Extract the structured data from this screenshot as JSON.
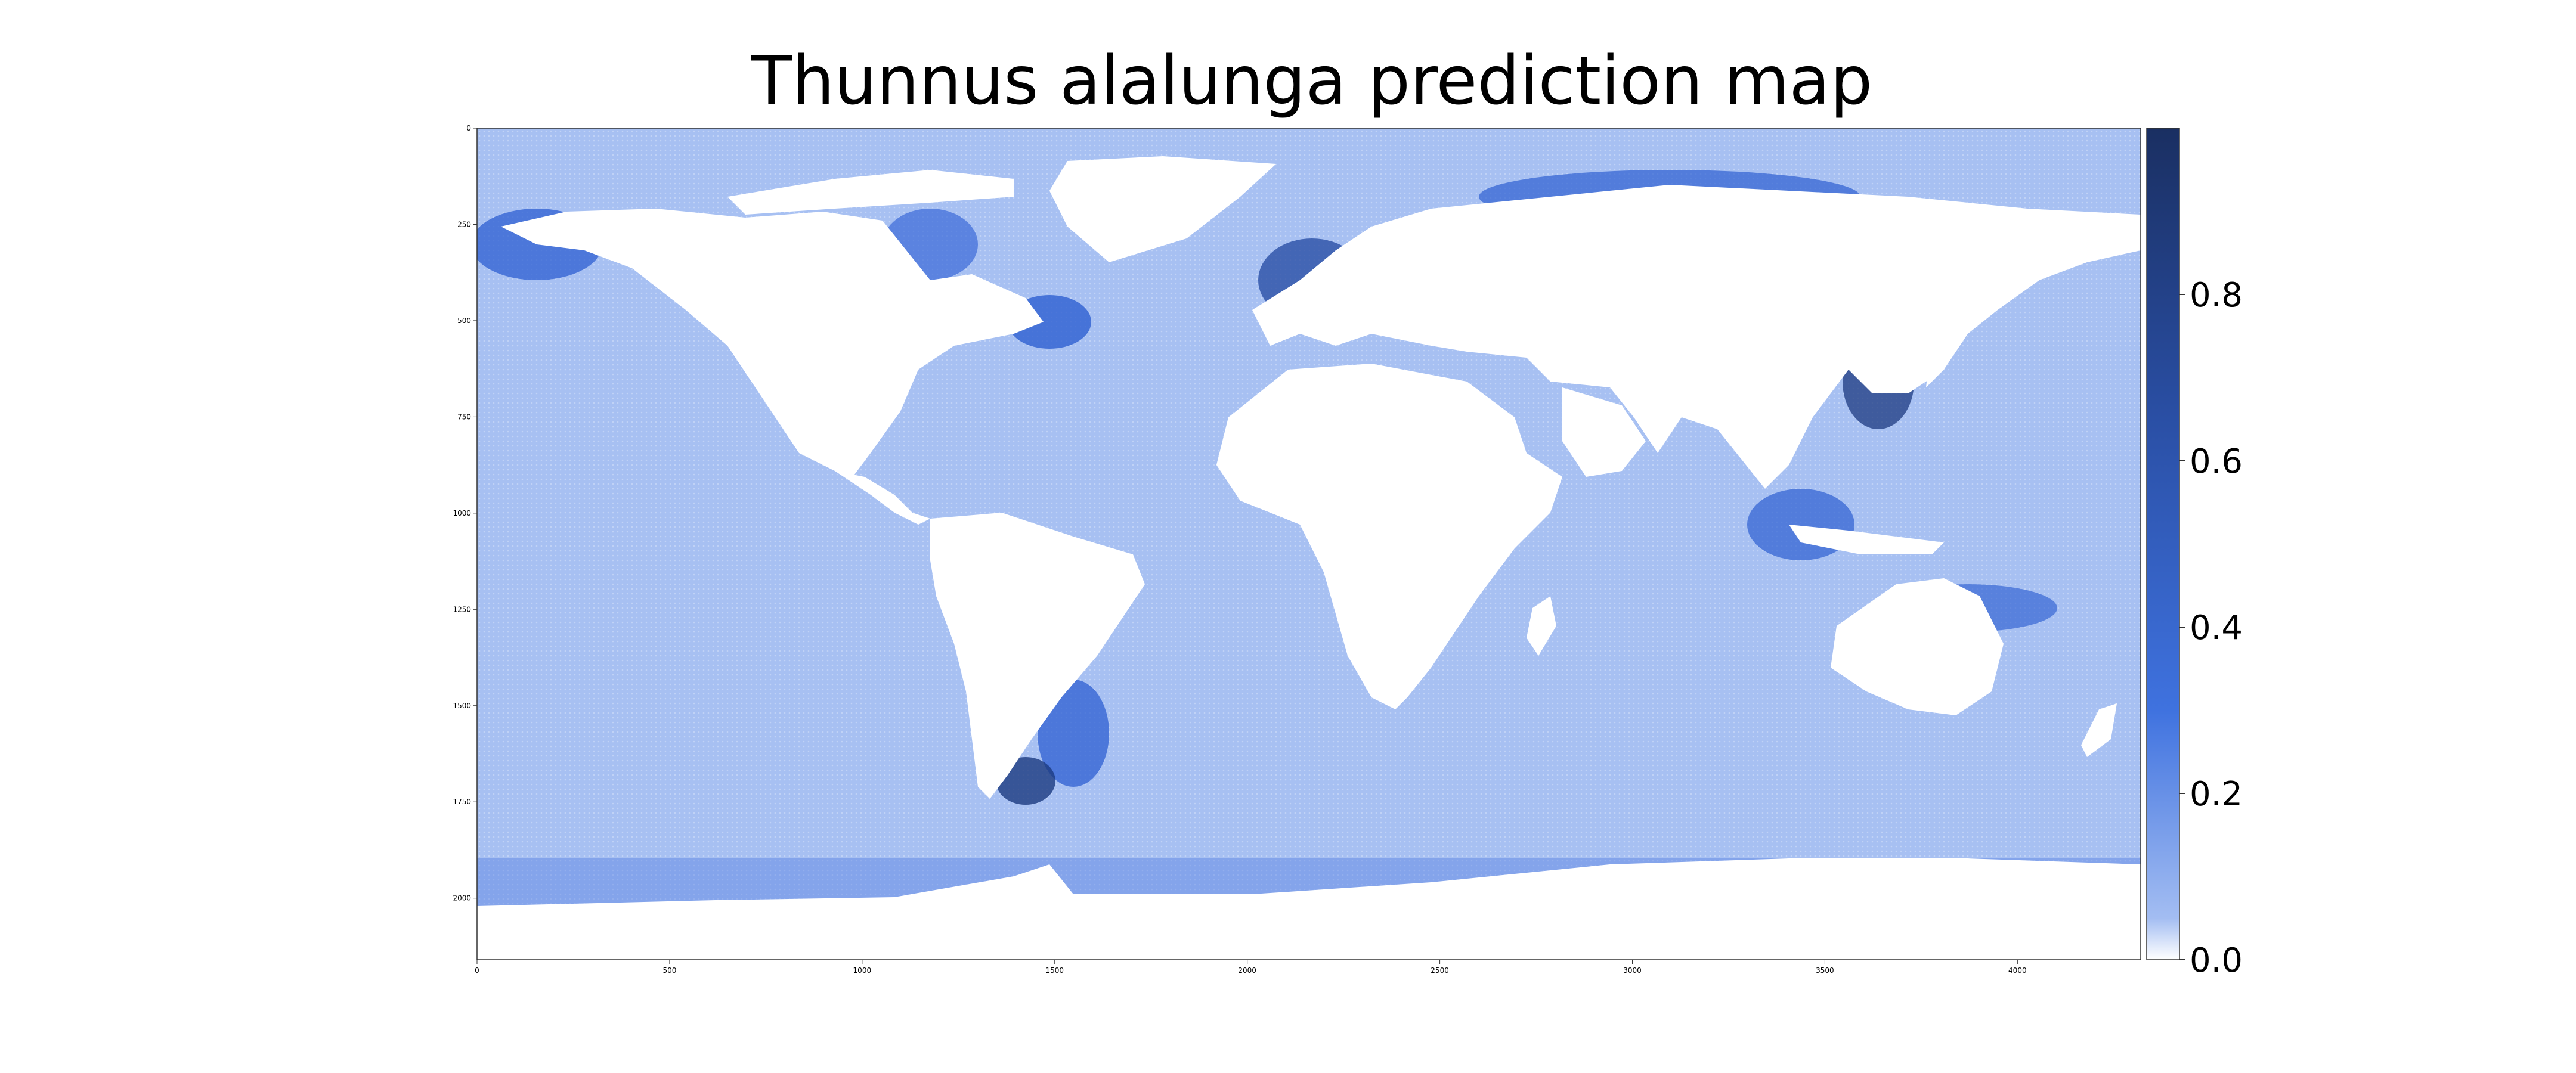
{
  "title": "Thunnus alalunga prediction map",
  "colors": {
    "ocean_base": "#a7c0f2",
    "ocean_mid": "#6d8fe6",
    "hotspot": "#2e5fd1",
    "hotspot_dark": "#1c3a80",
    "land": "#ffffff",
    "colormap": [
      "#ffffff",
      "#a3bdf2",
      "#3f72df",
      "#2a4fa5",
      "#1a2f62"
    ]
  },
  "map": {
    "x_ticks": [
      "0",
      "500",
      "1000",
      "1500",
      "2000",
      "2500",
      "3000",
      "3500",
      "4000"
    ],
    "y_ticks": [
      "0",
      "250",
      "500",
      "750",
      "1000",
      "1250",
      "1500",
      "1750",
      "2000"
    ],
    "x_range": [
      0,
      4320
    ],
    "y_range": [
      0,
      2160
    ]
  },
  "colorbar": {
    "range": [
      0,
      1
    ],
    "ticks": [
      "0.0",
      "0.2",
      "0.4",
      "0.6",
      "0.8"
    ]
  }
}
